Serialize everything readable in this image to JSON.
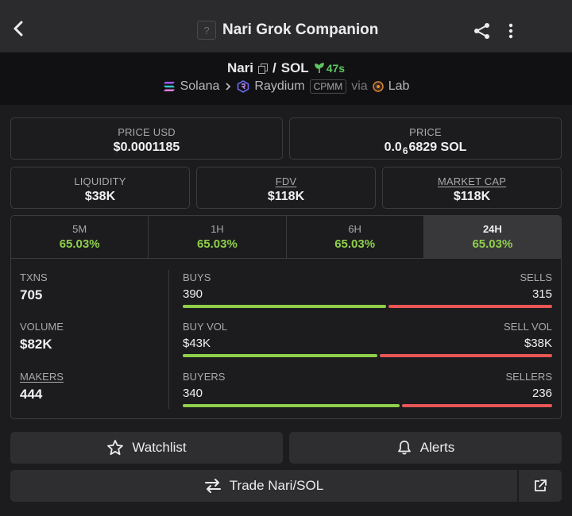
{
  "header": {
    "title": "Nari Grok Companion",
    "logo_placeholder": "?"
  },
  "pair": {
    "base": "Nari",
    "separator": "/",
    "quote": "SOL",
    "age": "47s",
    "chain": "Solana",
    "dex": "Raydium",
    "pool_type": "CPMM",
    "via_label": "via",
    "launchpad": "Lab"
  },
  "prices": {
    "usd_label": "PRICE USD",
    "usd_value": "$0.0001185",
    "native_label": "PRICE",
    "native_prefix": "0.0",
    "native_zeros": "6",
    "native_digits": "6829",
    "native_unit": "SOL"
  },
  "metrics": {
    "liquidity_label": "LIQUIDITY",
    "liquidity_value": "$38K",
    "fdv_label": "FDV",
    "fdv_value": "$118K",
    "mcap_label": "MARKET CAP",
    "mcap_value": "$118K"
  },
  "timeframes": [
    {
      "label": "5M",
      "change": "65.03%"
    },
    {
      "label": "1H",
      "change": "65.03%"
    },
    {
      "label": "6H",
      "change": "65.03%"
    },
    {
      "label": "24H",
      "change": "65.03%"
    }
  ],
  "stats": {
    "txns_label": "TXNS",
    "txns_value": "705",
    "volume_label": "VOLUME",
    "volume_value": "$82K",
    "makers_label": "MAKERS",
    "makers_value": "444",
    "buys_label": "BUYS",
    "buys_value": "390",
    "sells_label": "SELLS",
    "sells_value": "315",
    "buy_share": 0.553,
    "buyvol_label": "BUY VOL",
    "buyvol_value": "$43K",
    "sellvol_label": "SELL VOL",
    "sellvol_value": "$38K",
    "buyvol_share": 0.53,
    "buyers_label": "BUYERS",
    "buyers_value": "340",
    "sellers_label": "SELLERS",
    "sellers_value": "236",
    "buyers_share": 0.59
  },
  "actions": {
    "watchlist_label": "Watchlist",
    "alerts_label": "Alerts",
    "trade_label": "Trade Nari/SOL"
  },
  "colors": {
    "positive": "#8fcf4a",
    "negative": "#e85555",
    "age_green": "#5fc660"
  }
}
